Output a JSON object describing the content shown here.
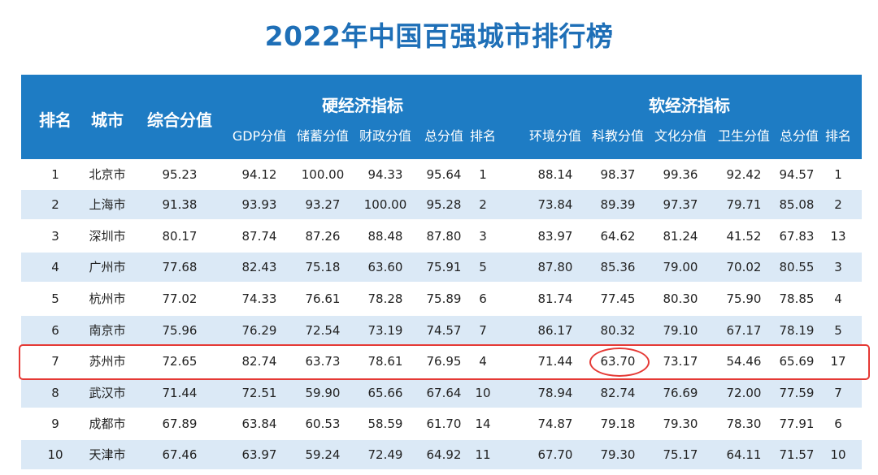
{
  "title": "2022年中国百强城市排行榜",
  "header": {
    "rank": "排名",
    "city": "城市",
    "composite": "综合分值",
    "hard_group": "硬经济指标",
    "soft_group": "软经济指标",
    "hard_cols": [
      "GDP分值",
      "储蓄分值",
      "财政分值",
      "总分值",
      "排名"
    ],
    "soft_cols": [
      "环境分值",
      "科教分值",
      "文化分值",
      "卫生分值",
      "总分值",
      "排名"
    ]
  },
  "colors": {
    "title": "#1e6fb7",
    "header_bg": "#1e7cc4",
    "row_alt": "#dbe9f6",
    "highlight": "#e53935"
  },
  "rows": [
    [
      "1",
      "北京市",
      "95.23",
      "94.12",
      "100.00",
      "94.33",
      "95.64",
      "1",
      "88.14",
      "98.37",
      "99.36",
      "92.42",
      "94.57",
      "1"
    ],
    [
      "2",
      "上海市",
      "91.38",
      "93.93",
      "93.27",
      "100.00",
      "95.28",
      "2",
      "73.84",
      "89.39",
      "97.37",
      "79.71",
      "85.08",
      "2"
    ],
    [
      "3",
      "深圳市",
      "80.17",
      "87.74",
      "87.26",
      "88.48",
      "87.80",
      "3",
      "83.97",
      "64.62",
      "81.24",
      "41.52",
      "67.83",
      "13"
    ],
    [
      "4",
      "广州市",
      "77.68",
      "82.43",
      "75.18",
      "63.60",
      "75.91",
      "5",
      "87.80",
      "85.36",
      "79.00",
      "70.02",
      "80.55",
      "3"
    ],
    [
      "5",
      "杭州市",
      "77.02",
      "74.33",
      "76.61",
      "78.28",
      "75.89",
      "6",
      "81.74",
      "77.45",
      "80.30",
      "75.90",
      "78.85",
      "4"
    ],
    [
      "6",
      "南京市",
      "75.96",
      "76.29",
      "72.54",
      "73.19",
      "74.57",
      "7",
      "86.17",
      "80.32",
      "79.10",
      "67.17",
      "78.19",
      "5"
    ],
    [
      "7",
      "苏州市",
      "72.65",
      "82.74",
      "63.73",
      "78.61",
      "76.95",
      "4",
      "71.44",
      "63.70",
      "73.17",
      "54.46",
      "65.69",
      "17"
    ],
    [
      "8",
      "武汉市",
      "71.44",
      "72.51",
      "59.90",
      "65.66",
      "67.64",
      "10",
      "78.94",
      "82.74",
      "76.69",
      "72.00",
      "77.59",
      "7"
    ],
    [
      "9",
      "成都市",
      "67.89",
      "63.84",
      "60.53",
      "58.59",
      "61.70",
      "14",
      "74.87",
      "79.18",
      "79.30",
      "78.30",
      "77.91",
      "6"
    ],
    [
      "10",
      "天津市",
      "67.46",
      "63.97",
      "59.24",
      "72.49",
      "64.92",
      "11",
      "67.70",
      "79.30",
      "75.17",
      "64.11",
      "71.57",
      "10"
    ]
  ]
}
